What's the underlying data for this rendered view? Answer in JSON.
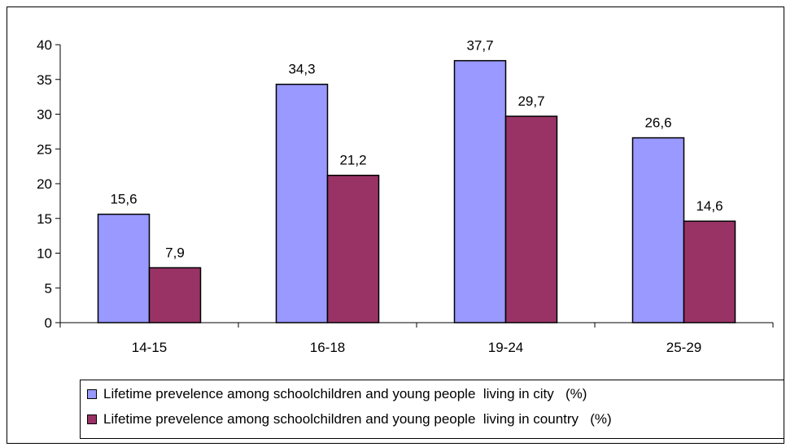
{
  "chart_data": {
    "type": "bar",
    "categories": [
      "14-15",
      "16-18",
      "19-24",
      "25-29"
    ],
    "series": [
      {
        "name": "Lifetime prevelence among schoolchildren and young people  living in city   (%)",
        "values": [
          15.6,
          34.3,
          37.7,
          26.6
        ],
        "labels": [
          "15,6",
          "34,3",
          "37,7",
          "26,6"
        ],
        "color": "#9999ff"
      },
      {
        "name": "Lifetime prevelence among schoolchildren and young people  living in country   (%)",
        "values": [
          7.9,
          21.2,
          29.7,
          14.6
        ],
        "labels": [
          "7,9",
          "21,2",
          "29,7",
          "14,6"
        ],
        "color": "#993366"
      }
    ],
    "ylim": [
      0,
      40
    ],
    "yticks": [
      "0",
      "5",
      "10",
      "15",
      "20",
      "25",
      "30",
      "35",
      "40"
    ],
    "grid": false,
    "legend_position": "bottom"
  }
}
